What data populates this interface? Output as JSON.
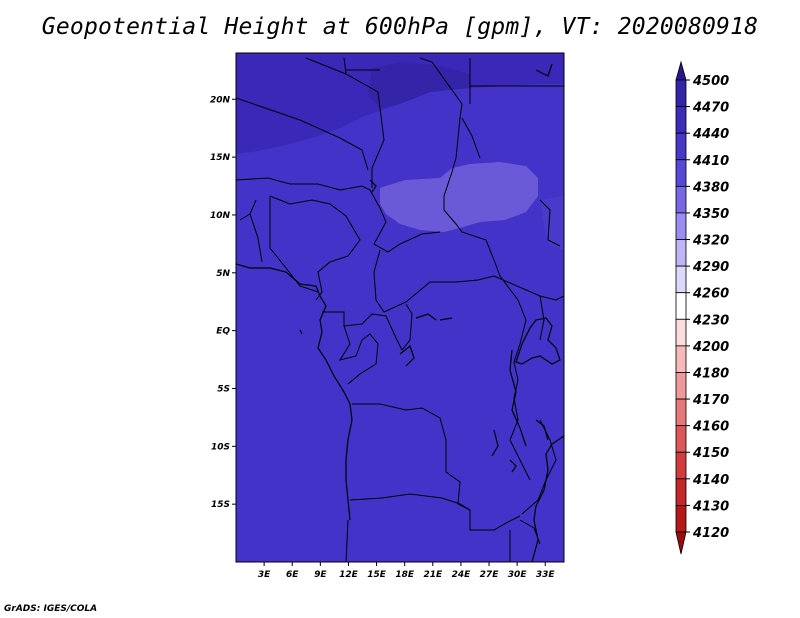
{
  "title": "Geopotential Height at 600hPa [gpm], VT: 2020080918",
  "credit": "GrADS: IGES/COLA",
  "map": {
    "lon_labels": [
      "3E",
      "6E",
      "9E",
      "12E",
      "15E",
      "18E",
      "21E",
      "24E",
      "27E",
      "30E",
      "33E"
    ],
    "lat_labels": [
      "20N",
      "15N",
      "10N",
      "5N",
      "EQ",
      "5S",
      "10S",
      "15S"
    ],
    "lon_range": [
      0,
      35
    ],
    "lat_range": [
      -20,
      24
    ],
    "base_fill": "#4433c8",
    "regions": [
      {
        "name": "high-north-band",
        "value_range": "4440-4470",
        "color": "#3a28b8"
      },
      {
        "name": "central-low-sudan",
        "value_range": "4380-4410",
        "color": "#6a5ad8"
      }
    ]
  },
  "colorbar": {
    "levels": [
      "4500",
      "4470",
      "4440",
      "4410",
      "4380",
      "4350",
      "4320",
      "4290",
      "4260",
      "4230",
      "4200",
      "4180",
      "4170",
      "4160",
      "4150",
      "4140",
      "4130",
      "4120"
    ],
    "colors": [
      "#281890",
      "#3424a8",
      "#3c2cb8",
      "#4838c8",
      "#5848d8",
      "#7868e6",
      "#9a8cf0",
      "#beb4f6",
      "#dcd8fb",
      "#ffffff",
      "#fcdcdc",
      "#f6baba",
      "#ef9a9a",
      "#e67878",
      "#dc5858",
      "#d23c3c",
      "#c42828",
      "#b41818",
      "#9a0c0c"
    ]
  }
}
